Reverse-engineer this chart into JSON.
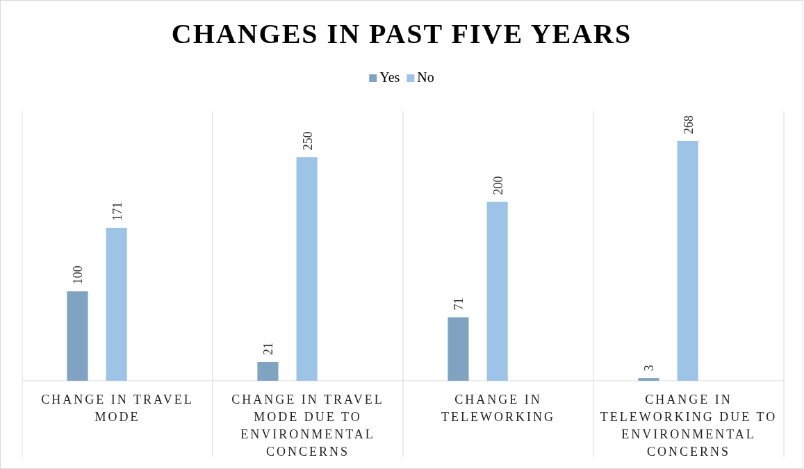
{
  "chart_data": {
    "type": "bar",
    "title": "CHANGES IN PAST FIVE YEARS",
    "categories": [
      "CHANGE IN TRAVEL MODE",
      "CHANGE IN TRAVEL MODE DUE TO ENVIRONMENTAL CONCERNS",
      "CHANGE IN TELEWORKING",
      "CHANGE IN TELEWORKING DUE TO ENVIRONMENTAL CONCERNS"
    ],
    "series": [
      {
        "name": "Yes",
        "color": "#7fa3c0",
        "values": [
          100,
          21,
          71,
          3
        ]
      },
      {
        "name": "No",
        "color": "#9dc3e6",
        "values": [
          171,
          250,
          200,
          268
        ]
      }
    ],
    "data_labels": true,
    "legend": "top"
  }
}
